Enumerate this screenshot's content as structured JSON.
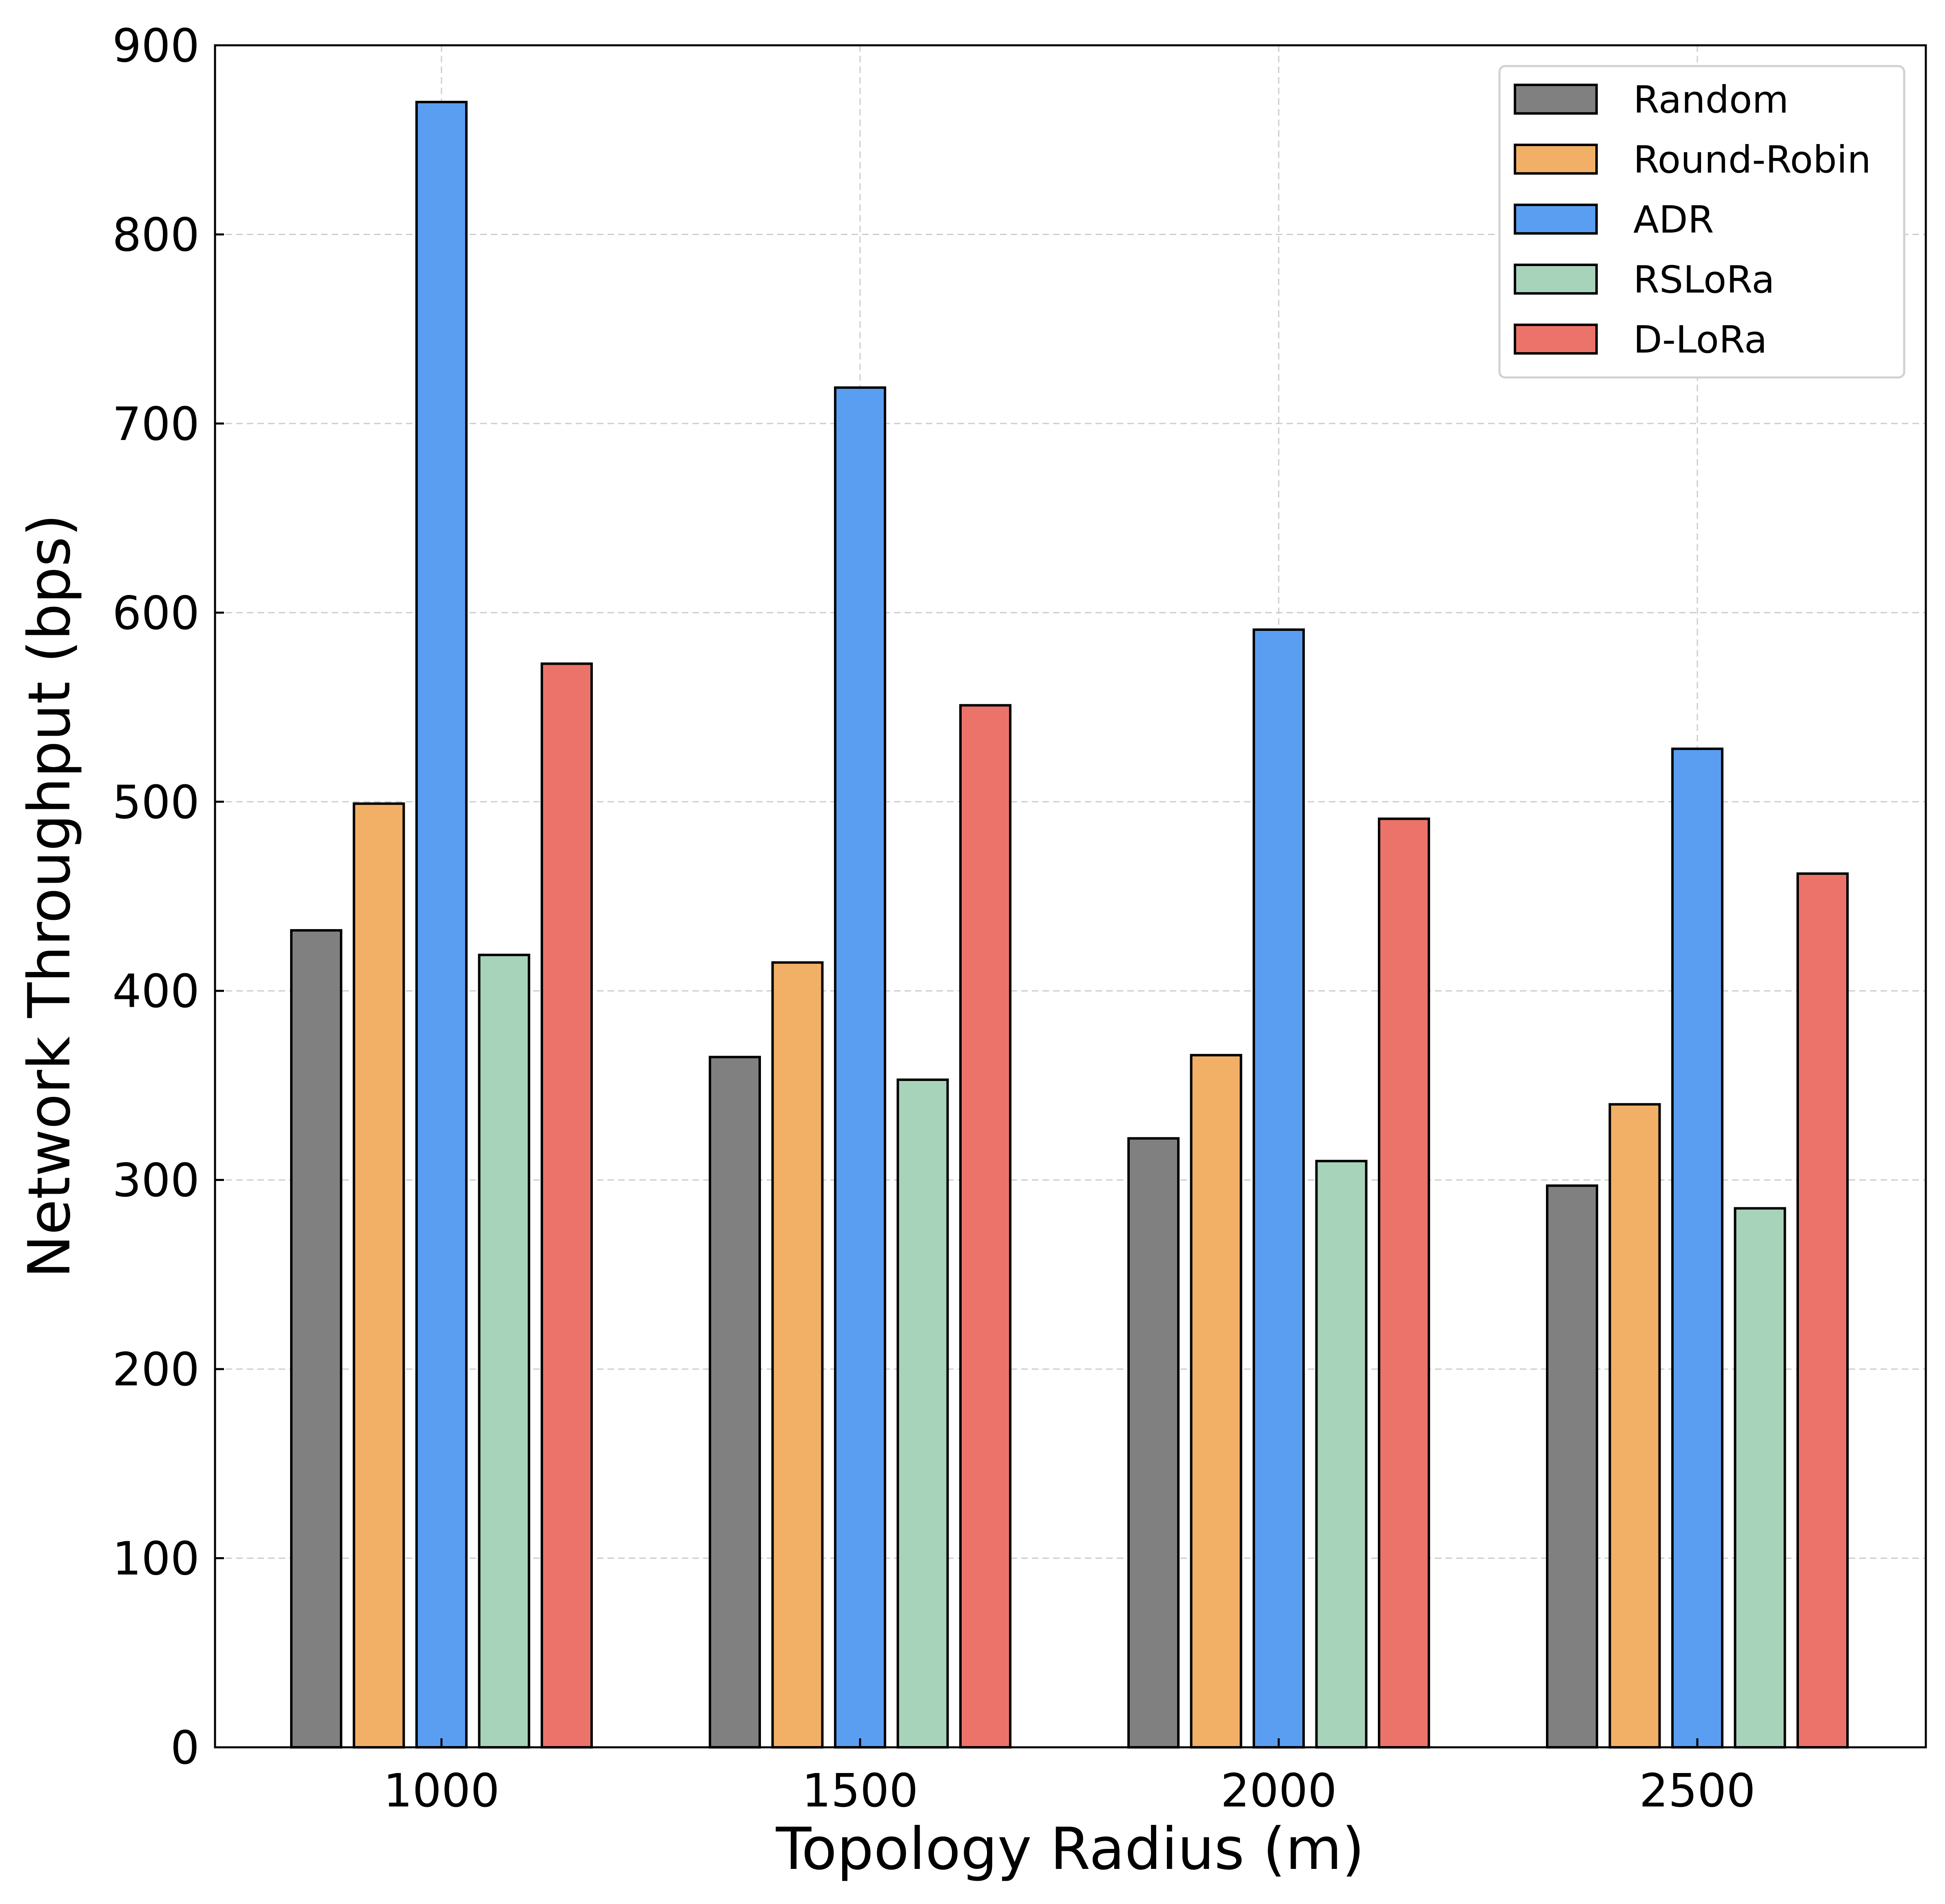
{
  "chart_data": {
    "type": "bar",
    "title": "",
    "xlabel": "Topology Radius (m)",
    "ylabel": "Network Throughput (bps)",
    "categories": [
      "1000",
      "1500",
      "2000",
      "2500"
    ],
    "ylim": [
      0,
      900
    ],
    "yticks": [
      "0",
      "100",
      "200",
      "300",
      "400",
      "500",
      "600",
      "700",
      "800",
      "900"
    ],
    "grid": true,
    "legend_position": "top-right",
    "series": [
      {
        "name": "Random",
        "color": "#808080",
        "values": [
          432,
          365,
          322,
          297
        ]
      },
      {
        "name": "Round-Robin",
        "color": "#f2b066",
        "values": [
          499,
          415,
          366,
          340
        ]
      },
      {
        "name": "ADR",
        "color": "#5a9ef2",
        "values": [
          870,
          719,
          591,
          528
        ]
      },
      {
        "name": "RSLoRa",
        "color": "#a7d3bb",
        "values": [
          419,
          353,
          310,
          285
        ]
      },
      {
        "name": "D-LoRa",
        "color": "#ec7369",
        "values": [
          573,
          551,
          491,
          462
        ]
      }
    ]
  }
}
